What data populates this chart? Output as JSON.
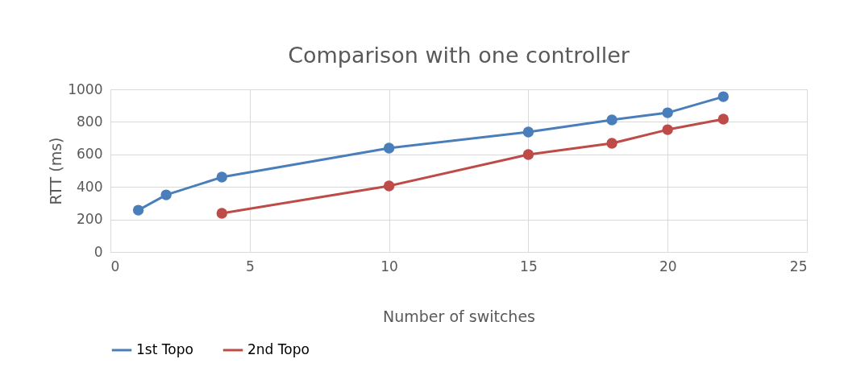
{
  "chart_data": {
    "type": "line",
    "title": "Comparison with one controller",
    "xlabel": "Number of switches",
    "ylabel": "RTT (ms)",
    "xlim": [
      0,
      25
    ],
    "xticks": [
      0,
      5,
      10,
      15,
      20,
      25
    ],
    "ylim": [
      0,
      1000
    ],
    "yticks": [
      0,
      200,
      400,
      600,
      800,
      1000
    ],
    "grid": true,
    "legend": "bottom",
    "marker": "circle",
    "line_style": "solid",
    "series": [
      {
        "name": "1st Topo",
        "color": "#4a7ebb",
        "x": [
          1,
          2,
          4,
          10,
          15,
          18,
          20,
          22
        ],
        "values": [
          257,
          351,
          460,
          639,
          738,
          812,
          856,
          955
        ]
      },
      {
        "name": "2nd Topo",
        "color": "#be4b48",
        "x": [
          4,
          10,
          15,
          18,
          20,
          22
        ],
        "values": [
          238,
          406,
          599,
          668,
          752,
          817
        ]
      }
    ]
  }
}
